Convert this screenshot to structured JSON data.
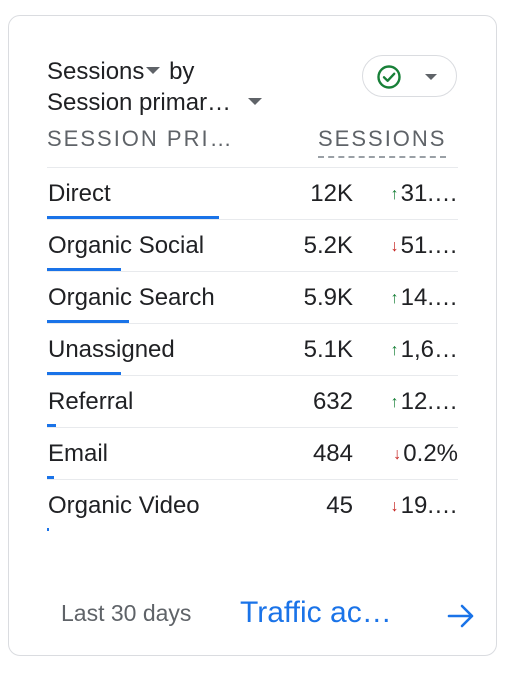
{
  "card": {
    "title_line1": "Sessions",
    "title_line1_suffix": "by",
    "title_line2": "Session primar…",
    "status_icon": "check-circle-icon",
    "columns": {
      "dimension": "SESSION PRI…",
      "metric": "SESSIONS"
    },
    "rows": [
      {
        "name": "Direct",
        "value": "12K",
        "direction": "up",
        "change": "31.…",
        "share": 0.42
      },
      {
        "name": "Organic Social",
        "value": "5.2K",
        "direction": "down",
        "change": "51.…",
        "share": 0.18
      },
      {
        "name": "Organic Search",
        "value": "5.9K",
        "direction": "up",
        "change": "14.…",
        "share": 0.2
      },
      {
        "name": "Unassigned",
        "value": "5.1K",
        "direction": "up",
        "change": "1,6…",
        "share": 0.18
      },
      {
        "name": "Referral",
        "value": "632",
        "direction": "up",
        "change": "12.…",
        "share": 0.022
      },
      {
        "name": "Email",
        "value": "484",
        "direction": "down",
        "change": "0.2%",
        "share": 0.017
      },
      {
        "name": "Organic Video",
        "value": "45",
        "direction": "down",
        "change": "19.…",
        "share": 0.003
      }
    ],
    "footer": {
      "range": "Last 30 days",
      "link": "Traffic ac…",
      "link_icon": "arrow-right-icon"
    },
    "colors": {
      "accent": "#1a73e8",
      "up": "#188038",
      "down": "#c5221f",
      "check": "#188038"
    }
  }
}
